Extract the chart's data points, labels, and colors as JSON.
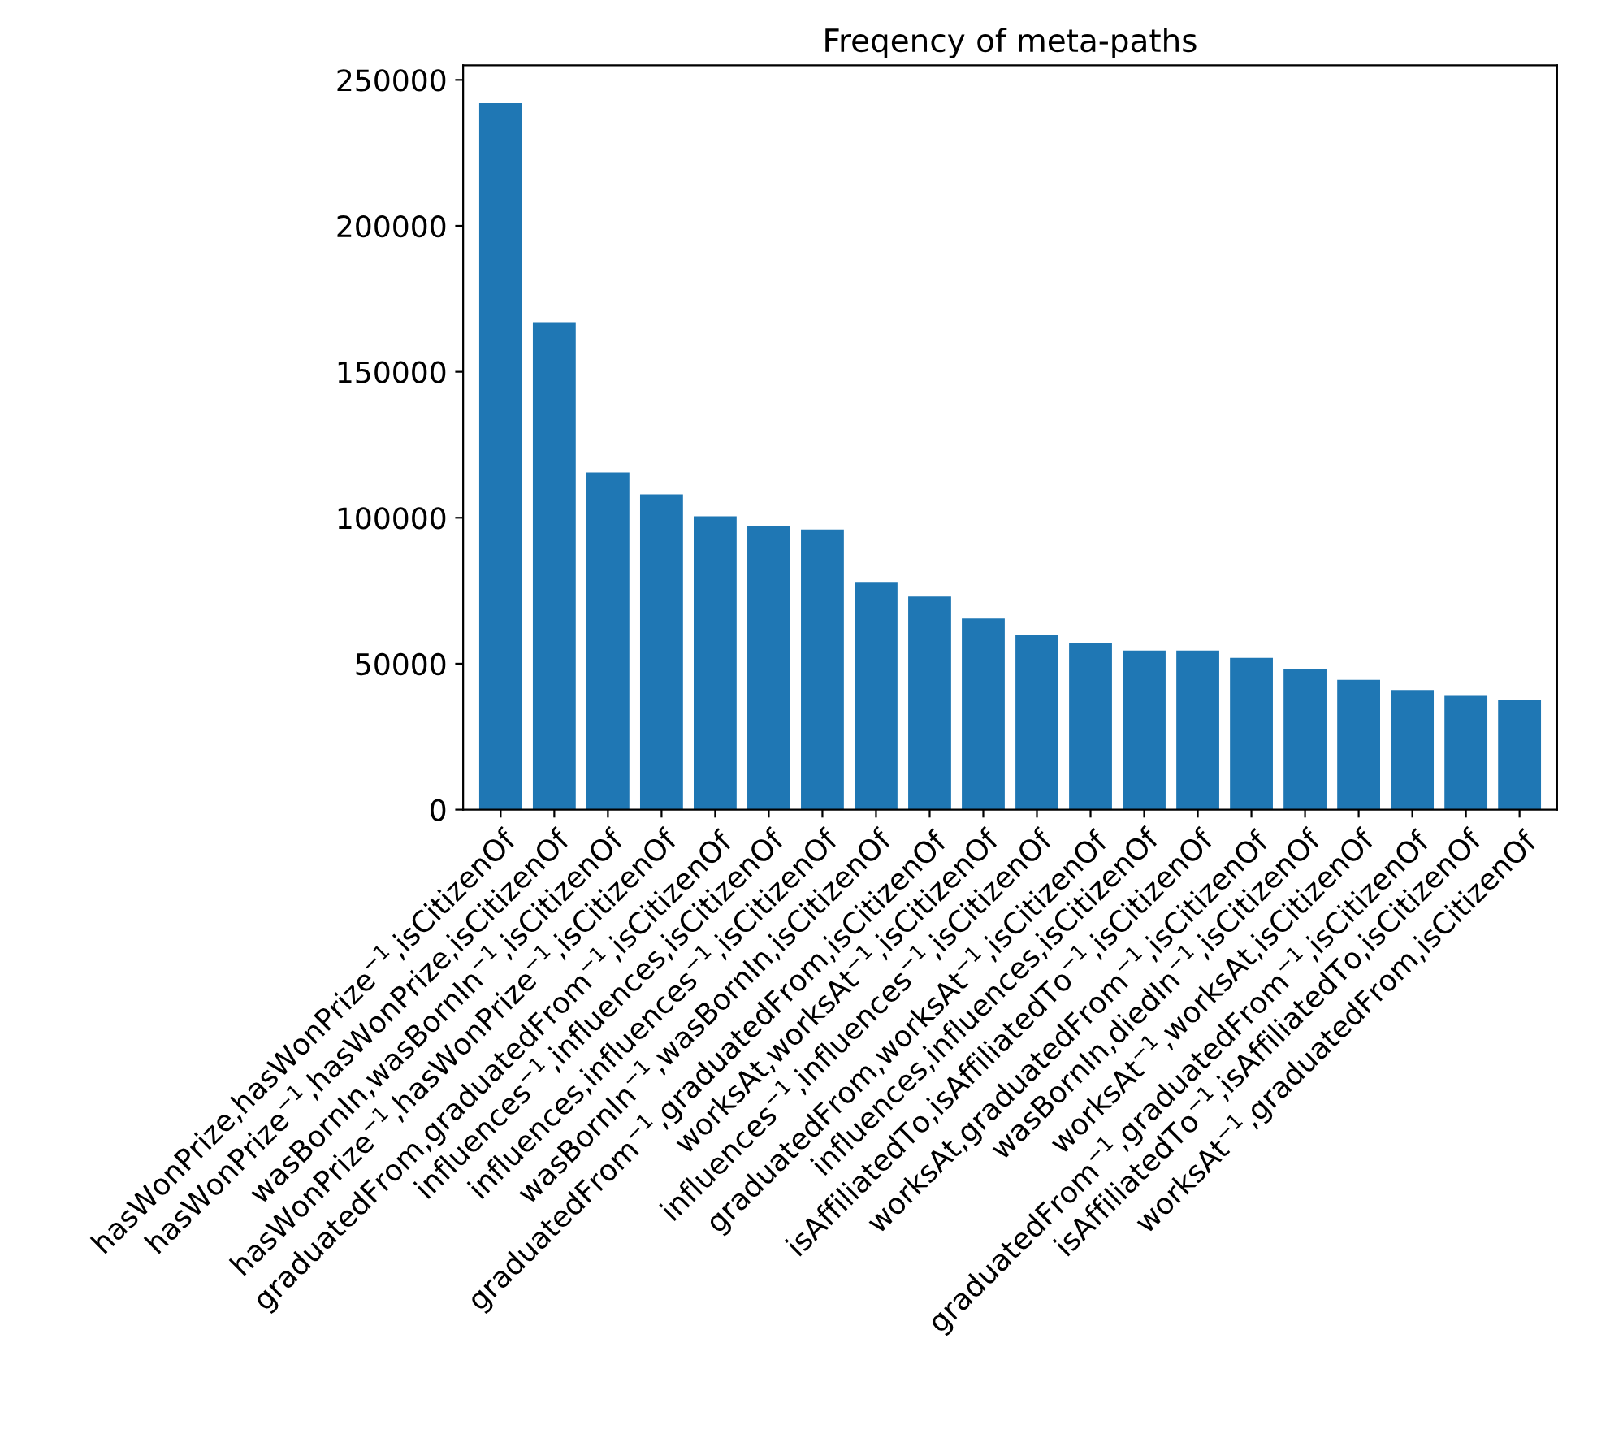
{
  "chart_data": {
    "type": "bar",
    "title": "Freqency of meta-paths",
    "categories": [
      "hasWonPrize,hasWonPrize$^{−1}$,isCitizenOf",
      "hasWonPrize$^{−1}$,hasWonPrize,isCitizenOf",
      "wasBornIn,wasBornIn$^{−1}$,isCitizenOf",
      "hasWonPrize$^{−1}$,hasWonPrize$^{−1}$,isCitizenOf",
      "graduatedFrom,graduatedFrom$^{−1}$,isCitizenOf",
      "influences$^{−1}$,influences,isCitizenOf",
      "influences,influences$^{−1}$,isCitizenOf",
      "wasBornIn$^{−1}$,wasBornIn,isCitizenOf",
      "graduatedFrom$^{−1}$,graduatedFrom,isCitizenOf",
      "worksAt,worksAt$^{−1}$,isCitizenOf",
      "influences$^{−1}$,influences$^{−1}$,isCitizenOf",
      "graduatedFrom,worksAt$^{−1}$,isCitizenOf",
      "influences,influences,isCitizenOf",
      "isAffiliatedTo,isAffiliatedTo$^{−1}$,isCitizenOf",
      "worksAt,graduatedFrom$^{−1}$,isCitizenOf",
      "wasBornIn,diedIn$^{−1}$,isCitizenOf",
      "worksAt$^{−1}$,worksAt,isCitizenOf",
      "graduatedFrom$^{−1}$,graduatedFrom$^{−1}$,isCitizenOf",
      "isAffiliatedTo$^{−1}$,isAffiliatedTo,isCitizenOf",
      "worksAt$^{−1}$,graduatedFrom,isCitizenOf"
    ],
    "values": [
      242000,
      167000,
      115500,
      108000,
      100500,
      97000,
      96000,
      78000,
      73000,
      65500,
      60000,
      57000,
      54500,
      54500,
      52000,
      48000,
      44500,
      41000,
      39000,
      37500
    ],
    "color": "#1f77b4",
    "ylim": [
      0,
      255000
    ],
    "yticks": [
      0,
      50000,
      100000,
      150000,
      200000,
      250000
    ],
    "grid": false
  }
}
